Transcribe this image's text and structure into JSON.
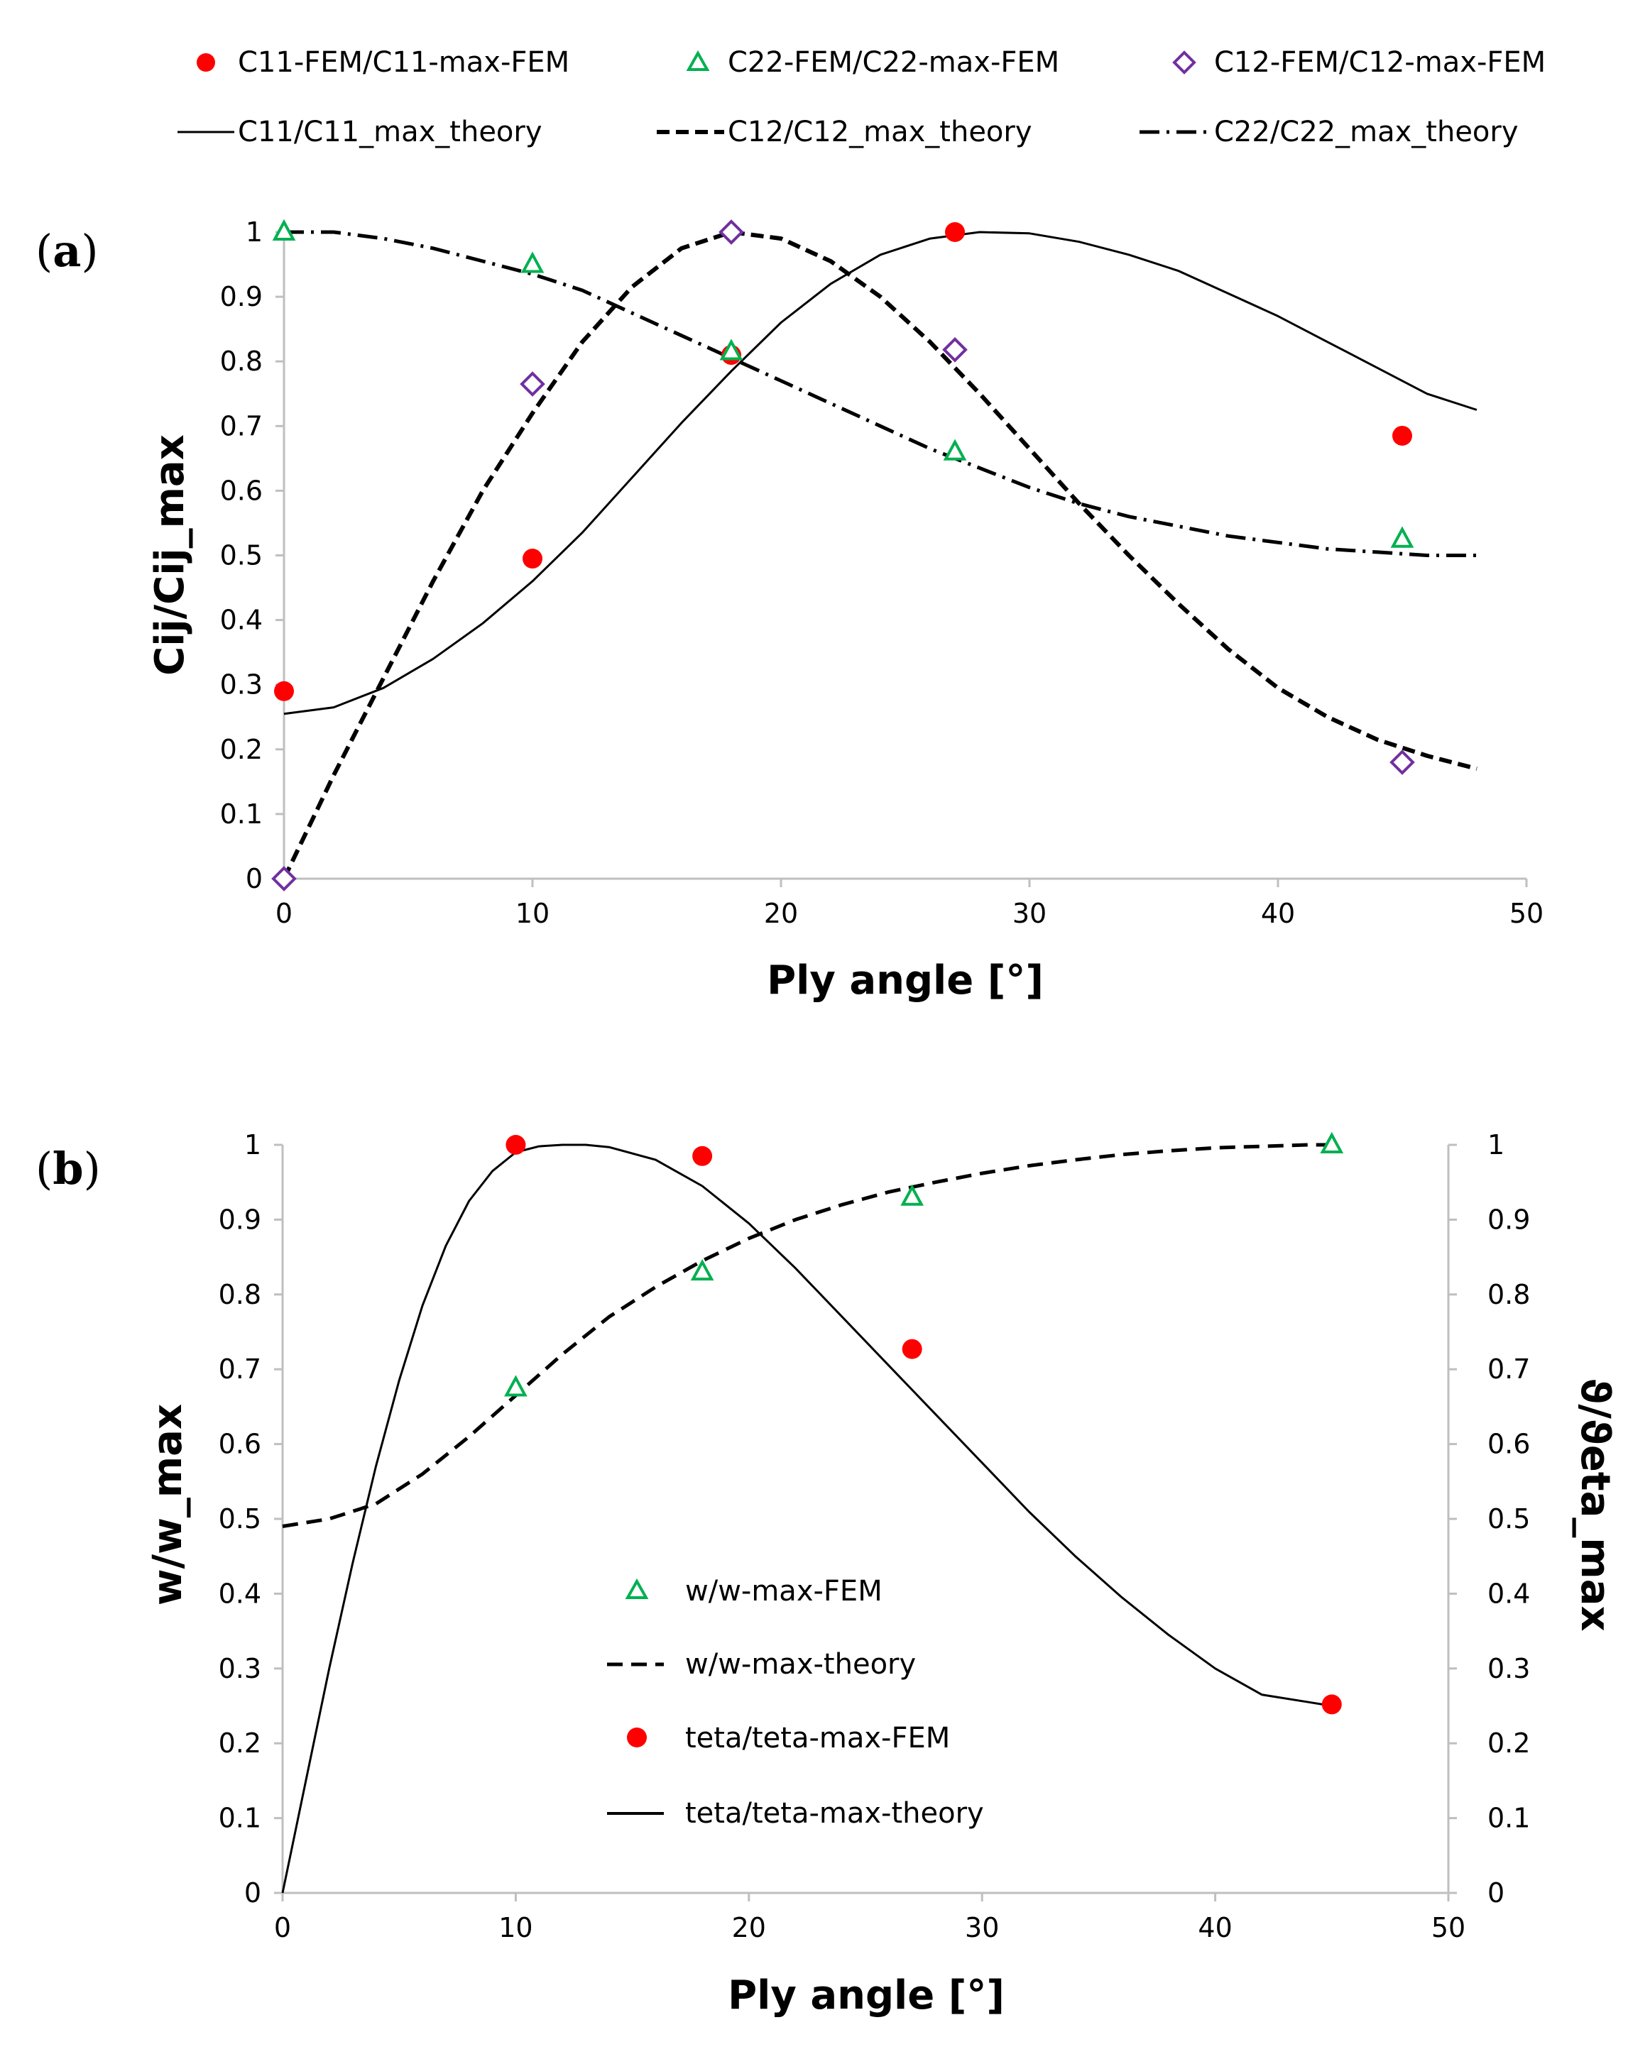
{
  "chart_data": [
    {
      "id": "a",
      "type": "scatter",
      "panel_label": {
        "open": "(",
        "letter": "a",
        "close": ")"
      },
      "xlabel": "Ply angle [°]",
      "ylabel": "Cij/Cij_max",
      "xlim": [
        0,
        50
      ],
      "ylim": [
        0,
        1
      ],
      "xticks": [
        "0",
        "10",
        "20",
        "30",
        "40",
        "50"
      ],
      "yticks": [
        "0",
        "0.1",
        "0.2",
        "0.3",
        "0.4",
        "0.5",
        "0.6",
        "0.7",
        "0.8",
        "0.9",
        "1"
      ],
      "grid": false,
      "legend_position": "top",
      "series": [
        {
          "key": "c11fem",
          "name": "C11-FEM/C11-max-FEM",
          "style": "filled-circle",
          "color": "#ff0000",
          "x": [
            0,
            10,
            18,
            27,
            45
          ],
          "y": [
            0.29,
            0.495,
            0.81,
            1.0,
            0.685
          ]
        },
        {
          "key": "c22fem",
          "name": "C22-FEM/C22-max-FEM",
          "style": "open-triangle",
          "color": "#00b050",
          "x": [
            0,
            10,
            18,
            27,
            45
          ],
          "y": [
            1.0,
            0.95,
            0.815,
            0.66,
            0.525
          ]
        },
        {
          "key": "c12fem",
          "name": "C12-FEM/C12-max-FEM",
          "style": "open-diamond",
          "color": "#7030a0",
          "x": [
            0,
            10,
            18,
            27,
            45
          ],
          "y": [
            0.0,
            0.765,
            1.0,
            0.818,
            0.18
          ]
        },
        {
          "key": "c11th",
          "name": "C11/C11_max_theory",
          "style": "solid-line",
          "color": "#000000",
          "x": [
            0,
            2,
            4,
            6,
            8,
            10,
            12,
            14,
            16,
            18,
            20,
            22,
            24,
            26,
            28,
            30,
            32,
            34,
            36,
            38,
            40,
            42,
            44,
            46,
            48
          ],
          "y": [
            0.255,
            0.265,
            0.295,
            0.34,
            0.395,
            0.46,
            0.535,
            0.62,
            0.705,
            0.785,
            0.86,
            0.92,
            0.965,
            0.99,
            1.0,
            0.998,
            0.985,
            0.965,
            0.94,
            0.905,
            0.87,
            0.83,
            0.79,
            0.75,
            0.725
          ]
        },
        {
          "key": "c12th",
          "name": "C12/C12_max_theory",
          "style": "dashed-line",
          "color": "#000000",
          "x": [
            0,
            2,
            4,
            6,
            8,
            10,
            12,
            14,
            16,
            18,
            20,
            22,
            24,
            26,
            28,
            30,
            32,
            34,
            36,
            38,
            40,
            42,
            44,
            46,
            48
          ],
          "y": [
            0.0,
            0.16,
            0.31,
            0.46,
            0.6,
            0.72,
            0.83,
            0.915,
            0.975,
            1.0,
            0.99,
            0.955,
            0.9,
            0.83,
            0.75,
            0.665,
            0.58,
            0.5,
            0.425,
            0.355,
            0.295,
            0.25,
            0.215,
            0.19,
            0.17
          ]
        },
        {
          "key": "c22th",
          "name": "C22/C22_max_theory",
          "style": "dashdot-line",
          "color": "#000000",
          "x": [
            0,
            2,
            4,
            6,
            8,
            10,
            12,
            14,
            16,
            18,
            20,
            22,
            24,
            26,
            28,
            30,
            32,
            34,
            36,
            38,
            40,
            42,
            44,
            46,
            48
          ],
          "y": [
            1.0,
            1.0,
            0.99,
            0.975,
            0.955,
            0.935,
            0.91,
            0.875,
            0.84,
            0.805,
            0.77,
            0.735,
            0.7,
            0.665,
            0.635,
            0.605,
            0.58,
            0.56,
            0.545,
            0.53,
            0.52,
            0.51,
            0.505,
            0.5,
            0.5
          ]
        }
      ]
    },
    {
      "id": "b",
      "type": "scatter",
      "panel_label": {
        "open": "(",
        "letter": "b",
        "close": ")"
      },
      "xlabel": "Ply angle [°]",
      "ylabel": "w/w_max",
      "y2label": "ϑ/ϑeta_max",
      "xlim": [
        0,
        50
      ],
      "ylim": [
        0,
        1
      ],
      "y2lim": [
        0,
        1
      ],
      "xticks": [
        "0",
        "10",
        "20",
        "30",
        "40",
        "50"
      ],
      "yticks": [
        "0",
        "0.1",
        "0.2",
        "0.3",
        "0.4",
        "0.5",
        "0.6",
        "0.7",
        "0.8",
        "0.9",
        "1"
      ],
      "y2ticks": [
        "0",
        "0.1",
        "0.2",
        "0.3",
        "0.4",
        "0.5",
        "0.6",
        "0.7",
        "0.8",
        "0.9",
        "1"
      ],
      "grid": false,
      "legend_position": "center",
      "series": [
        {
          "key": "wfem",
          "name": "w/w-max-FEM",
          "style": "open-triangle",
          "color": "#00b050",
          "axis": "left",
          "x": [
            10,
            18,
            27,
            45
          ],
          "y": [
            0.675,
            0.83,
            0.93,
            1.0
          ]
        },
        {
          "key": "wth",
          "name": "w/w-max-theory",
          "style": "dashed-line",
          "color": "#000000",
          "axis": "left",
          "x": [
            0,
            2,
            4,
            6,
            8,
            10,
            12,
            14,
            16,
            18,
            20,
            22,
            24,
            26,
            28,
            30,
            32,
            34,
            36,
            38,
            40,
            42,
            44,
            45
          ],
          "y": [
            0.49,
            0.5,
            0.52,
            0.56,
            0.61,
            0.665,
            0.72,
            0.77,
            0.81,
            0.845,
            0.875,
            0.9,
            0.92,
            0.937,
            0.95,
            0.962,
            0.972,
            0.98,
            0.987,
            0.992,
            0.996,
            0.998,
            1.0,
            1.0
          ]
        },
        {
          "key": "tfem",
          "name": "teta/teta-max-FEM",
          "style": "filled-circle",
          "color": "#ff0000",
          "axis": "right",
          "x": [
            10,
            18,
            27,
            45
          ],
          "y": [
            1.0,
            0.985,
            0.727,
            0.252
          ]
        },
        {
          "key": "tth",
          "name": "teta/teta-max-theory",
          "style": "solid-line",
          "color": "#000000",
          "axis": "right",
          "x": [
            0,
            1,
            2,
            3,
            4,
            5,
            6,
            7,
            8,
            9,
            10,
            11,
            12,
            13,
            14,
            16,
            18,
            20,
            22,
            24,
            26,
            28,
            30,
            32,
            34,
            36,
            38,
            40,
            42,
            44,
            45
          ],
          "y": [
            0.0,
            0.15,
            0.3,
            0.44,
            0.57,
            0.685,
            0.785,
            0.865,
            0.925,
            0.965,
            0.99,
            0.998,
            1.0,
            1.0,
            0.997,
            0.98,
            0.945,
            0.895,
            0.835,
            0.77,
            0.705,
            0.64,
            0.575,
            0.51,
            0.45,
            0.395,
            0.345,
            0.3,
            0.265,
            0.255,
            0.25
          ]
        }
      ]
    }
  ]
}
